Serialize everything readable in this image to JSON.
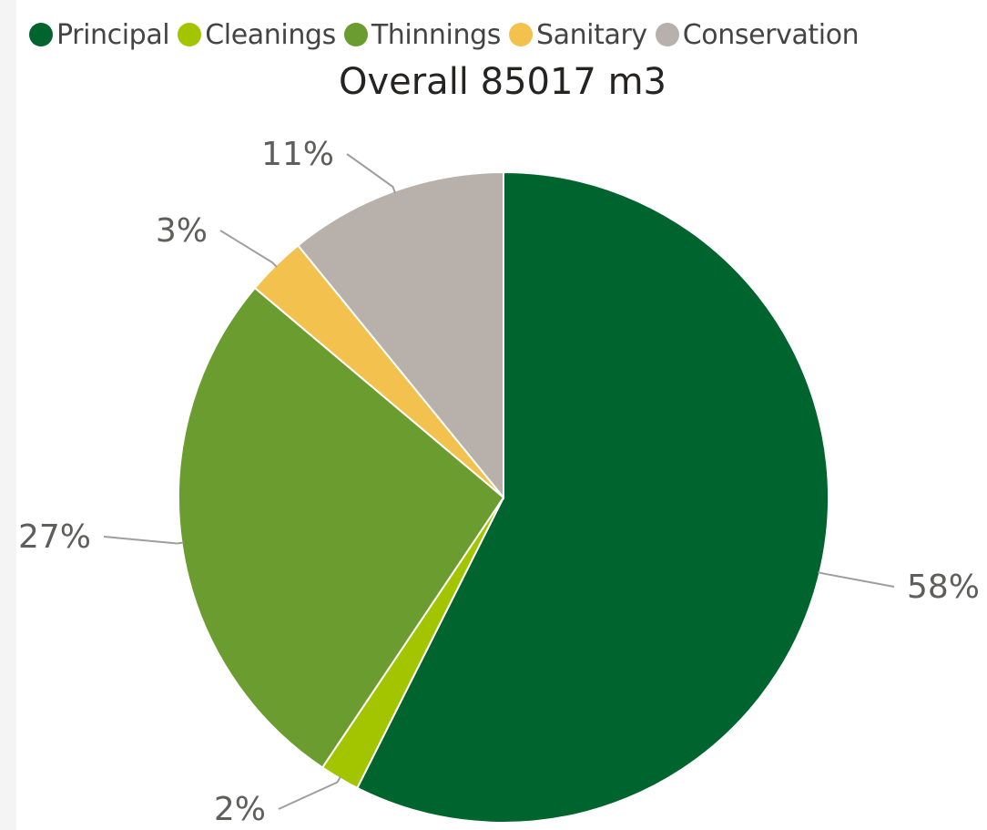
{
  "chart_data": {
    "type": "pie",
    "title": "Overall 85017 m3",
    "legend_position": "top",
    "slices": [
      {
        "name": "Principal",
        "value": 58,
        "label": "58%",
        "color": "#00642F"
      },
      {
        "name": "Cleanings",
        "value": 2,
        "label": "2%",
        "color": "#A2C500"
      },
      {
        "name": "Thinnings",
        "value": 27,
        "label": "27%",
        "color": "#6B9C2F"
      },
      {
        "name": "Sanitary",
        "value": 3,
        "label": "3%",
        "color": "#F2C14E"
      },
      {
        "name": "Conservation",
        "value": 11,
        "label": "11%",
        "color": "#B8B0AA"
      }
    ]
  }
}
